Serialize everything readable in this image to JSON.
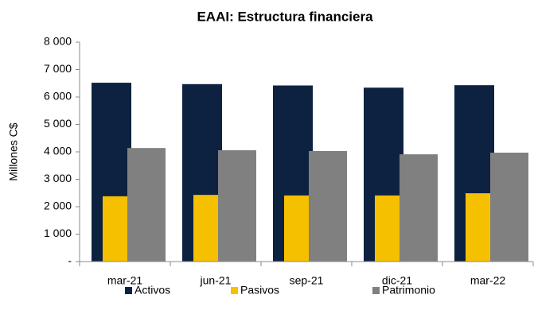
{
  "chart_data": {
    "type": "bar",
    "title": "EAAI: Estructura financiera",
    "y_label": "Millones C$",
    "categories": [
      "mar-21",
      "jun-21",
      "sep-21",
      "dic-21",
      "mar-22"
    ],
    "series": [
      {
        "name": "Activos",
        "color": "#0d2240",
        "values": [
          6520,
          6470,
          6420,
          6340,
          6430
        ]
      },
      {
        "name": "Pasivos",
        "color": "#f5c000",
        "values": [
          2380,
          2430,
          2410,
          2410,
          2490
        ]
      },
      {
        "name": "Patrimonio",
        "color": "#808080",
        "values": [
          4140,
          4060,
          4030,
          3910,
          3970
        ]
      }
    ],
    "ylim": [
      0,
      8000
    ],
    "yticks": [
      {
        "value": 0,
        "label": "-"
      },
      {
        "value": 1000,
        "label": "1 000"
      },
      {
        "value": 2000,
        "label": "2 000"
      },
      {
        "value": 3000,
        "label": "3 000"
      },
      {
        "value": 4000,
        "label": "4 000"
      },
      {
        "value": 5000,
        "label": "5 000"
      },
      {
        "value": 6000,
        "label": "6 000"
      },
      {
        "value": 7000,
        "label": "7 000"
      },
      {
        "value": 8000,
        "label": "8 000"
      }
    ],
    "legend": "bottom"
  }
}
